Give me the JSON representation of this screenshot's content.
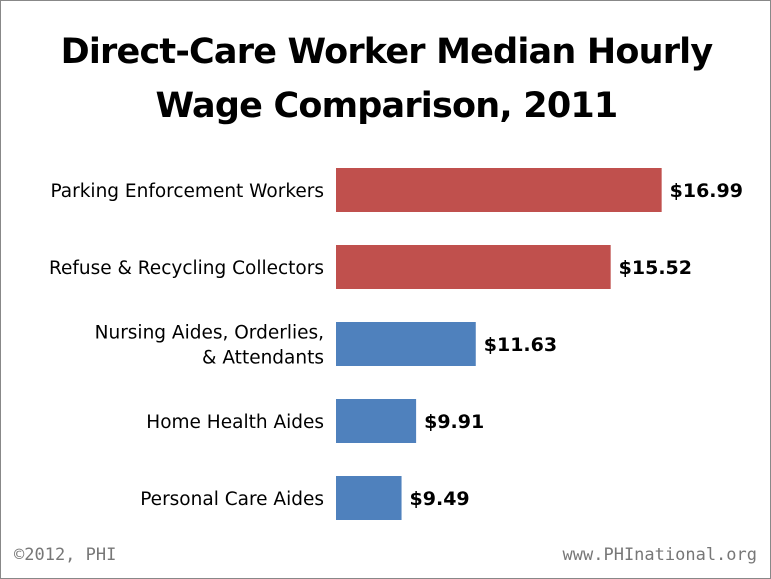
{
  "chart_data": {
    "type": "bar",
    "orientation": "horizontal",
    "title_lines": [
      "Direct-Care Worker Median Hourly",
      "Wage Comparison, 2011"
    ],
    "categories": [
      [
        "Parking Enforcement Workers"
      ],
      [
        "Refuse & Recycling Collectors"
      ],
      [
        "Nursing Aides, Orderlies,",
        "& Attendants"
      ],
      [
        "Home Health Aides"
      ],
      [
        "Personal Care Aides"
      ]
    ],
    "values": [
      16.99,
      15.52,
      11.63,
      9.91,
      9.49
    ],
    "value_labels": [
      "$16.99",
      "$15.52",
      "$11.63",
      "$9.91",
      "$9.49"
    ],
    "bar_colors": [
      "#C0504D",
      "#C0504D",
      "#4F81BD",
      "#4F81BD",
      "#4F81BD"
    ],
    "xlim": [
      7.6,
      17.0
    ],
    "grid": false,
    "axes_visible": false
  },
  "footer": {
    "copyright": "©2012, PHI",
    "url": "www.PHInational.org"
  }
}
